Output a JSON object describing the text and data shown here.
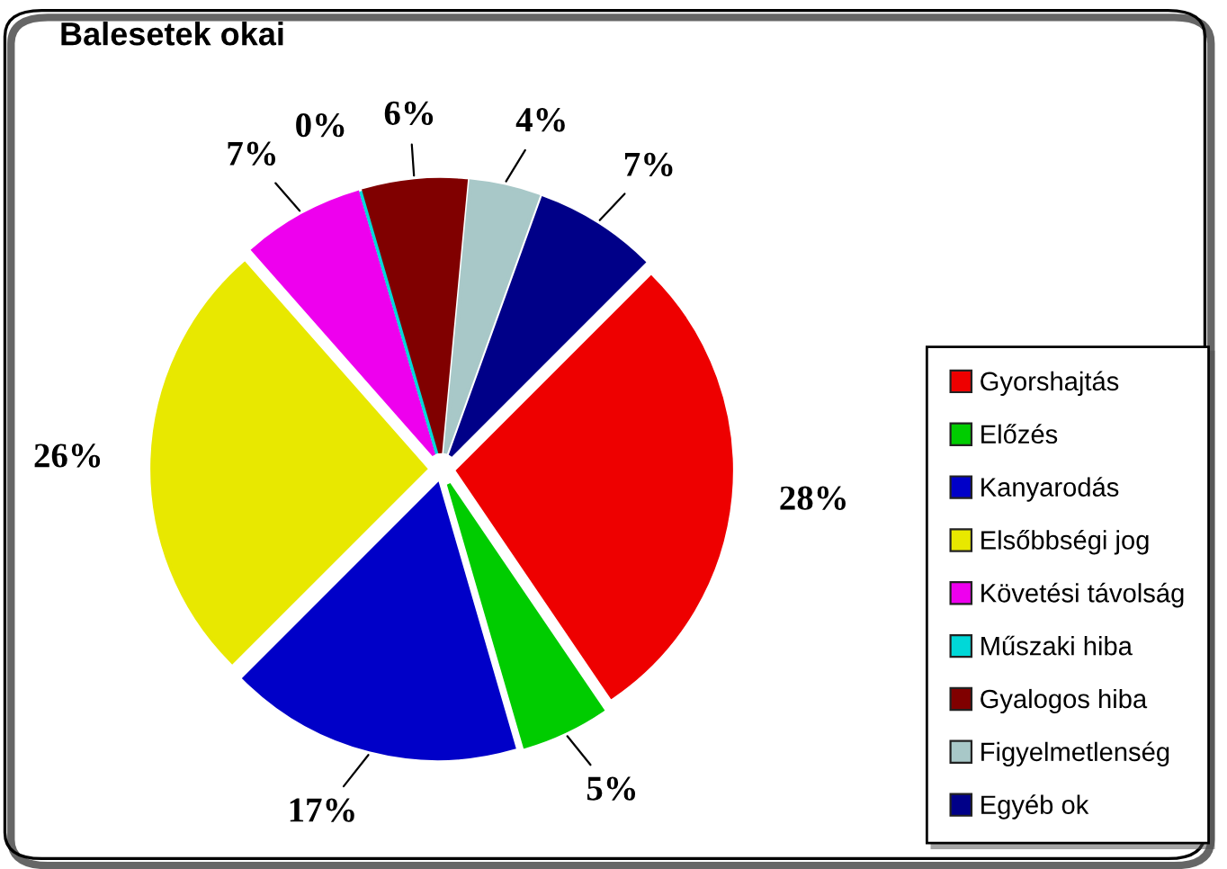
{
  "chart_data": {
    "type": "pie",
    "title": "Balesetek okai",
    "categories": [
      "Gyorshajtás",
      "Előzés",
      "Kanyarodás",
      "Elsőbbségi jog",
      "Követési távolság",
      "Műszaki hiba",
      "Gyalogos hiba",
      "Figyelmetlenség",
      "Egyéb ok"
    ],
    "values": [
      28,
      5,
      17,
      26,
      7,
      0,
      6,
      4,
      7
    ],
    "value_labels": [
      "28%",
      "5%",
      "17%",
      "26%",
      "7%",
      "0%",
      "6%",
      "4%",
      "7%"
    ],
    "colors": [
      "#ee0000",
      "#00cc00",
      "#0000c8",
      "#e8e800",
      "#ee00ee",
      "#00d8d8",
      "#800000",
      "#a8c8c8",
      "#000088"
    ],
    "legend": "bottom right"
  }
}
